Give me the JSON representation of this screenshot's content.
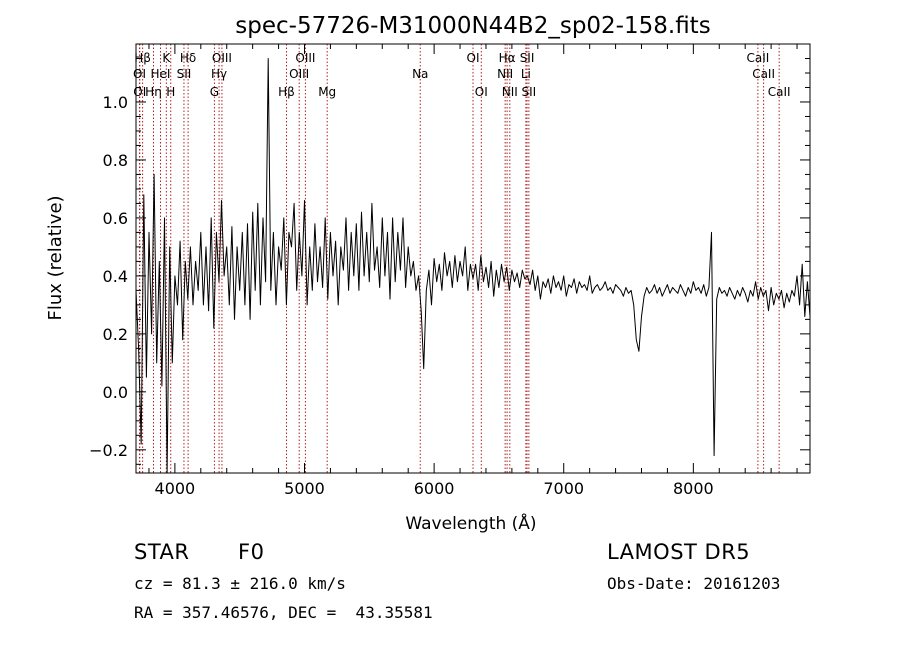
{
  "chart_data": {
    "type": "line",
    "title": "spec-57726-M31000N44B2_sp02-158.fits",
    "xlabel": "Wavelength (Å)",
    "ylabel": "Flux (relative)",
    "xlim": [
      3700,
      8900
    ],
    "ylim": [
      -0.28,
      1.2
    ],
    "x_ticks": [
      4000,
      5000,
      6000,
      7000,
      8000
    ],
    "x_tick_labels": [
      "4000",
      "5000",
      "6000",
      "7000",
      "8000"
    ],
    "y_ticks": [
      -0.2,
      0.0,
      0.2,
      0.4,
      0.6,
      0.8,
      1.0
    ],
    "y_tick_labels": [
      "−0.2",
      "0.0",
      "0.2",
      "0.4",
      "0.6",
      "0.8",
      "1.0"
    ],
    "grid": false,
    "line_color": "#000000",
    "marker_color": "#b22222",
    "spectral_lines": [
      {
        "label": "Hβ",
        "wavelength": 3751,
        "row": 1
      },
      {
        "label": "OI",
        "wavelength": 3727,
        "row": 2
      },
      {
        "label": "OI",
        "wavelength": 3729,
        "row": 3
      },
      {
        "label": "K",
        "wavelength": 3934,
        "row": 1
      },
      {
        "label": "HeI",
        "wavelength": 3889,
        "row": 2
      },
      {
        "label": "Hη",
        "wavelength": 3835,
        "row": 3
      },
      {
        "label": "H",
        "wavelength": 3968,
        "row": 3
      },
      {
        "label": "Hδ",
        "wavelength": 4102,
        "row": 1
      },
      {
        "label": "SII",
        "wavelength": 4070,
        "row": 2
      },
      {
        "label": "OIII",
        "wavelength": 4363,
        "row": 1
      },
      {
        "label": "Hγ",
        "wavelength": 4341,
        "row": 2
      },
      {
        "label": "G",
        "wavelength": 4305,
        "row": 3
      },
      {
        "label": "Hβ",
        "wavelength": 4861,
        "row": 3
      },
      {
        "label": "OIII",
        "wavelength": 5007,
        "row": 1
      },
      {
        "label": "OIII",
        "wavelength": 4959,
        "row": 2
      },
      {
        "label": "Mg",
        "wavelength": 5175,
        "row": 3
      },
      {
        "label": "Na",
        "wavelength": 5893,
        "row": 2
      },
      {
        "label": "OI",
        "wavelength": 6300,
        "row": 1
      },
      {
        "label": "OI",
        "wavelength": 6364,
        "row": 3
      },
      {
        "label": "Hα",
        "wavelength": 6563,
        "row": 1
      },
      {
        "label": "NII",
        "wavelength": 6548,
        "row": 2
      },
      {
        "label": "NII",
        "wavelength": 6584,
        "row": 3
      },
      {
        "label": "SII",
        "wavelength": 6717,
        "row": 1
      },
      {
        "label": "Li",
        "wavelength": 6708,
        "row": 2
      },
      {
        "label": "SII",
        "wavelength": 6731,
        "row": 3
      },
      {
        "label": "CaII",
        "wavelength": 8498,
        "row": 1
      },
      {
        "label": "CaII",
        "wavelength": 8542,
        "row": 2
      },
      {
        "label": "CaII",
        "wavelength": 8662,
        "row": 3
      }
    ],
    "x": [
      3700,
      3720,
      3740,
      3760,
      3780,
      3800,
      3820,
      3840,
      3860,
      3880,
      3900,
      3920,
      3940,
      3960,
      3980,
      4000,
      4020,
      4040,
      4060,
      4080,
      4100,
      4120,
      4140,
      4160,
      4180,
      4200,
      4220,
      4240,
      4260,
      4280,
      4300,
      4320,
      4340,
      4360,
      4380,
      4400,
      4420,
      4440,
      4460,
      4480,
      4500,
      4520,
      4540,
      4560,
      4580,
      4600,
      4620,
      4640,
      4660,
      4680,
      4700,
      4720,
      4740,
      4760,
      4780,
      4800,
      4820,
      4840,
      4860,
      4880,
      4900,
      4920,
      4940,
      4960,
      4980,
      5000,
      5020,
      5040,
      5060,
      5080,
      5100,
      5120,
      5140,
      5160,
      5180,
      5200,
      5220,
      5240,
      5260,
      5280,
      5300,
      5320,
      5340,
      5360,
      5380,
      5400,
      5420,
      5440,
      5460,
      5480,
      5500,
      5520,
      5540,
      5560,
      5580,
      5600,
      5620,
      5640,
      5660,
      5680,
      5700,
      5720,
      5740,
      5760,
      5780,
      5800,
      5820,
      5840,
      5860,
      5880,
      5900,
      5920,
      5940,
      5960,
      5980,
      6000,
      6020,
      6040,
      6060,
      6080,
      6100,
      6120,
      6140,
      6160,
      6180,
      6200,
      6220,
      6240,
      6260,
      6280,
      6300,
      6320,
      6340,
      6360,
      6380,
      6400,
      6420,
      6440,
      6460,
      6480,
      6500,
      6520,
      6540,
      6560,
      6580,
      6600,
      6620,
      6640,
      6660,
      6680,
      6700,
      6720,
      6740,
      6760,
      6780,
      6800,
      6820,
      6840,
      6860,
      6880,
      6900,
      6920,
      6940,
      6960,
      6980,
      7000,
      7020,
      7040,
      7060,
      7080,
      7100,
      7120,
      7140,
      7160,
      7180,
      7200,
      7220,
      7240,
      7260,
      7280,
      7300,
      7320,
      7340,
      7360,
      7380,
      7400,
      7420,
      7440,
      7460,
      7480,
      7500,
      7520,
      7540,
      7560,
      7580,
      7600,
      7620,
      7640,
      7660,
      7680,
      7700,
      7720,
      7740,
      7760,
      7780,
      7800,
      7820,
      7840,
      7860,
      7880,
      7900,
      7920,
      7940,
      7960,
      7980,
      8000,
      8020,
      8040,
      8060,
      8080,
      8100,
      8120,
      8140,
      8160,
      8180,
      8200,
      8220,
      8240,
      8260,
      8280,
      8300,
      8320,
      8340,
      8360,
      8380,
      8400,
      8420,
      8440,
      8460,
      8480,
      8500,
      8520,
      8540,
      8560,
      8580,
      8600,
      8620,
      8640,
      8660,
      8680,
      8700,
      8720,
      8740,
      8760,
      8780,
      8800,
      8820,
      8840,
      8860,
      8880,
      8900
    ],
    "y": [
      0.35,
      0.15,
      -0.18,
      0.68,
      0.05,
      0.55,
      0.2,
      0.75,
      0.1,
      0.45,
      0.02,
      0.6,
      -0.28,
      0.5,
      0.1,
      0.4,
      0.3,
      0.52,
      0.18,
      0.45,
      0.32,
      0.5,
      0.3,
      0.45,
      0.35,
      0.55,
      0.3,
      0.5,
      0.28,
      0.6,
      0.22,
      0.55,
      0.38,
      0.66,
      0.4,
      0.5,
      0.3,
      0.57,
      0.25,
      0.5,
      0.35,
      0.55,
      0.3,
      0.58,
      0.25,
      0.62,
      0.35,
      0.65,
      0.3,
      0.6,
      0.38,
      1.15,
      0.35,
      0.55,
      0.3,
      0.5,
      0.42,
      0.6,
      0.3,
      0.55,
      0.5,
      0.65,
      0.35,
      0.55,
      0.4,
      0.66,
      0.3,
      0.5,
      0.35,
      0.58,
      0.38,
      0.5,
      0.36,
      0.6,
      0.32,
      0.55,
      0.4,
      0.52,
      0.3,
      0.5,
      0.42,
      0.6,
      0.35,
      0.55,
      0.4,
      0.58,
      0.35,
      0.62,
      0.4,
      0.55,
      0.38,
      0.65,
      0.42,
      0.5,
      0.36,
      0.6,
      0.4,
      0.55,
      0.32,
      0.6,
      0.38,
      0.55,
      0.42,
      0.6,
      0.36,
      0.5,
      0.4,
      0.45,
      0.35,
      0.4,
      0.28,
      0.08,
      0.35,
      0.42,
      0.3,
      0.46,
      0.38,
      0.44,
      0.35,
      0.48,
      0.4,
      0.45,
      0.36,
      0.47,
      0.38,
      0.45,
      0.4,
      0.5,
      0.35,
      0.44,
      0.39,
      0.44,
      0.35,
      0.47,
      0.38,
      0.43,
      0.36,
      0.45,
      0.33,
      0.42,
      0.36,
      0.44,
      0.38,
      0.43,
      0.35,
      0.42,
      0.38,
      0.41,
      0.36,
      0.42,
      0.39,
      0.4,
      0.37,
      0.42,
      0.35,
      0.4,
      0.32,
      0.38,
      0.36,
      0.39,
      0.34,
      0.4,
      0.36,
      0.38,
      0.35,
      0.4,
      0.33,
      0.37,
      0.36,
      0.39,
      0.34,
      0.38,
      0.36,
      0.37,
      0.35,
      0.4,
      0.34,
      0.36,
      0.37,
      0.35,
      0.36,
      0.38,
      0.35,
      0.36,
      0.34,
      0.37,
      0.36,
      0.35,
      0.33,
      0.36,
      0.34,
      0.35,
      0.3,
      0.18,
      0.14,
      0.26,
      0.33,
      0.36,
      0.34,
      0.35,
      0.37,
      0.34,
      0.36,
      0.33,
      0.35,
      0.37,
      0.34,
      0.36,
      0.35,
      0.34,
      0.37,
      0.35,
      0.33,
      0.36,
      0.34,
      0.38,
      0.35,
      0.36,
      0.34,
      0.37,
      0.33,
      0.36,
      0.55,
      -0.22,
      0.32,
      0.36,
      0.34,
      0.35,
      0.33,
      0.36,
      0.34,
      0.32,
      0.35,
      0.33,
      0.36,
      0.34,
      0.31,
      0.35,
      0.33,
      0.38,
      0.32,
      0.36,
      0.33,
      0.35,
      0.28,
      0.36,
      0.3,
      0.34,
      0.32,
      0.35,
      0.29,
      0.34,
      0.31,
      0.35,
      0.33,
      0.4,
      0.3,
      0.44,
      0.26,
      0.38,
      0.26
    ]
  },
  "info": {
    "obj_class": "STAR",
    "subclass": "F0",
    "survey": "LAMOST DR5",
    "cz": "cz = 81.3 ± 216.0 km/s",
    "obs_date": "Obs-Date: 20161203",
    "coords": "RA = 357.46576, DEC =  43.35581"
  }
}
